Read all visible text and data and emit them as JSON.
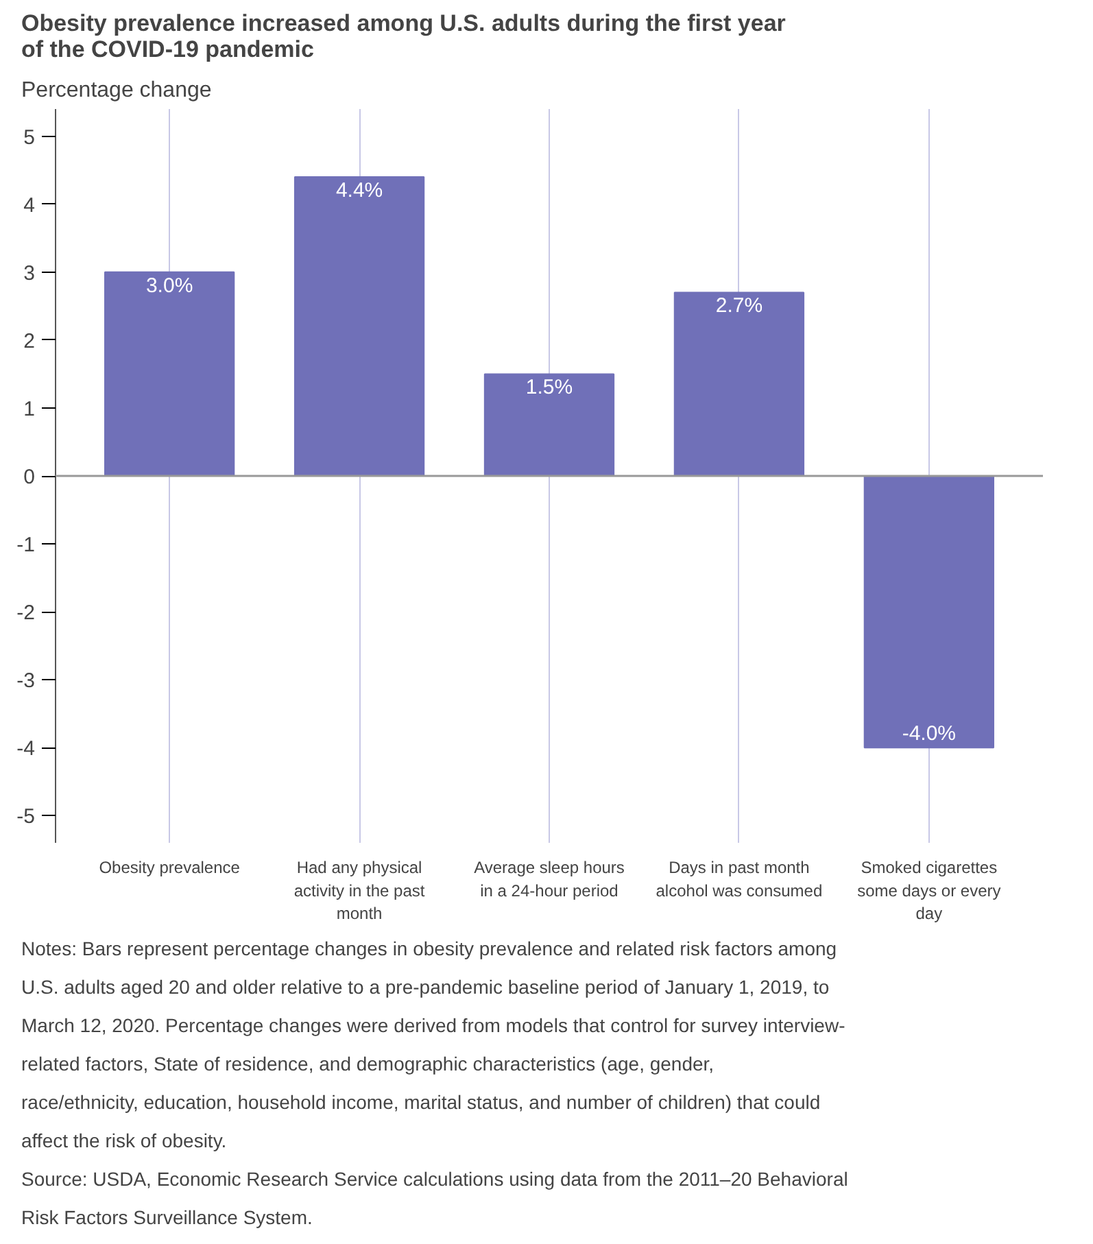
{
  "chart_data": {
    "type": "bar",
    "title": "Obesity prevalence increased among U.S. adults during the first year of the COVID-19 pandemic",
    "ylabel": "Percentage change",
    "categories": [
      "Obesity prevalence",
      "Had any physical activity in the past month",
      "Average sleep hours in a 24-hour period",
      "Days in past month alcohol was consumed",
      "Smoked cigarettes some days or every day"
    ],
    "values": [
      3.0,
      4.4,
      1.5,
      2.7,
      -4.0
    ],
    "value_labels": [
      "3.0%",
      "4.4%",
      "1.5%",
      "2.7%",
      "-4.0%"
    ],
    "color": "#7070b8",
    "ylim": [
      -5.4,
      5.4
    ],
    "yticks": [
      -5,
      -4,
      -3,
      -2,
      -1,
      0,
      1,
      2,
      3,
      4,
      5
    ],
    "grid": "x",
    "ref_lines": [
      {
        "axis": "y",
        "value": 0,
        "color": "#999999"
      }
    ],
    "annotations": [
      "Notes: Bars represent percentage changes in obesity prevalence and related risk factors among U.S. adults aged 20 and older relative to a pre-pandemic baseline period of January 1, 2019, to March 12, 2020. Percentage changes were derived from models that control for survey interview-related factors, State of residence, and demographic characteristics (age, gender, race/ethnicity, education, household income, marital status, and number of children) that could affect the risk of obesity.",
      "Source: USDA, Economic Research Service calculations using data from the 2011–20 Behavioral Risk Factors Surveillance System."
    ]
  }
}
